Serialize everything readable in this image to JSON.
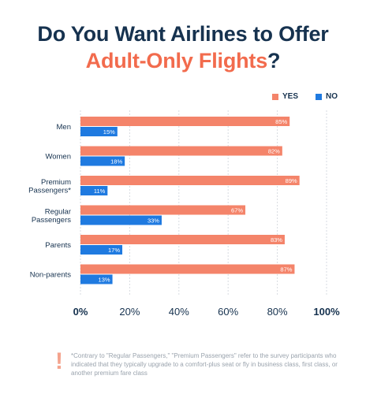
{
  "header": {
    "title_line1": "Do You Want Airlines to Offer",
    "title_highlight": "Adult-Only Flights",
    "title_end": "?"
  },
  "legend": [
    {
      "label": "YES",
      "color": "#f4846a"
    },
    {
      "label": "NO",
      "color": "#1f7ae0"
    }
  ],
  "chart_data": {
    "type": "bar",
    "orientation": "horizontal",
    "categories": [
      [
        "Men"
      ],
      [
        "Women"
      ],
      [
        "Premium",
        "Passengers*"
      ],
      [
        "Regular",
        "Passengers"
      ],
      [
        "Parents"
      ],
      [
        "Non-parents"
      ]
    ],
    "series": [
      {
        "name": "YES",
        "color": "#f4846a",
        "values": [
          85,
          82,
          89,
          67,
          83,
          87
        ],
        "labels": [
          "85%",
          "82%",
          "89%",
          "67%",
          "83%",
          "87%"
        ]
      },
      {
        "name": "NO",
        "color": "#1f7ae0",
        "values": [
          15,
          18,
          11,
          33,
          17,
          13
        ],
        "labels": [
          "15%",
          "18%",
          "11%",
          "33%",
          "17%",
          "13%"
        ]
      }
    ],
    "xlim": [
      0,
      100
    ],
    "xticks": [
      0,
      20,
      40,
      60,
      80,
      100
    ],
    "xtick_labels": [
      "0%",
      "20%",
      "40%",
      "60%",
      "80%",
      "100%"
    ],
    "legend_position": "top-right",
    "grid": true
  },
  "footnote": {
    "mark": "!",
    "text": "*Contrary to \"Regular Passengers,\" \"Premium Passengers\" refer to the survey participants who indicated that they typically upgrade to a comfort-plus seat or fly in business class, first class, or another premium fare class"
  }
}
